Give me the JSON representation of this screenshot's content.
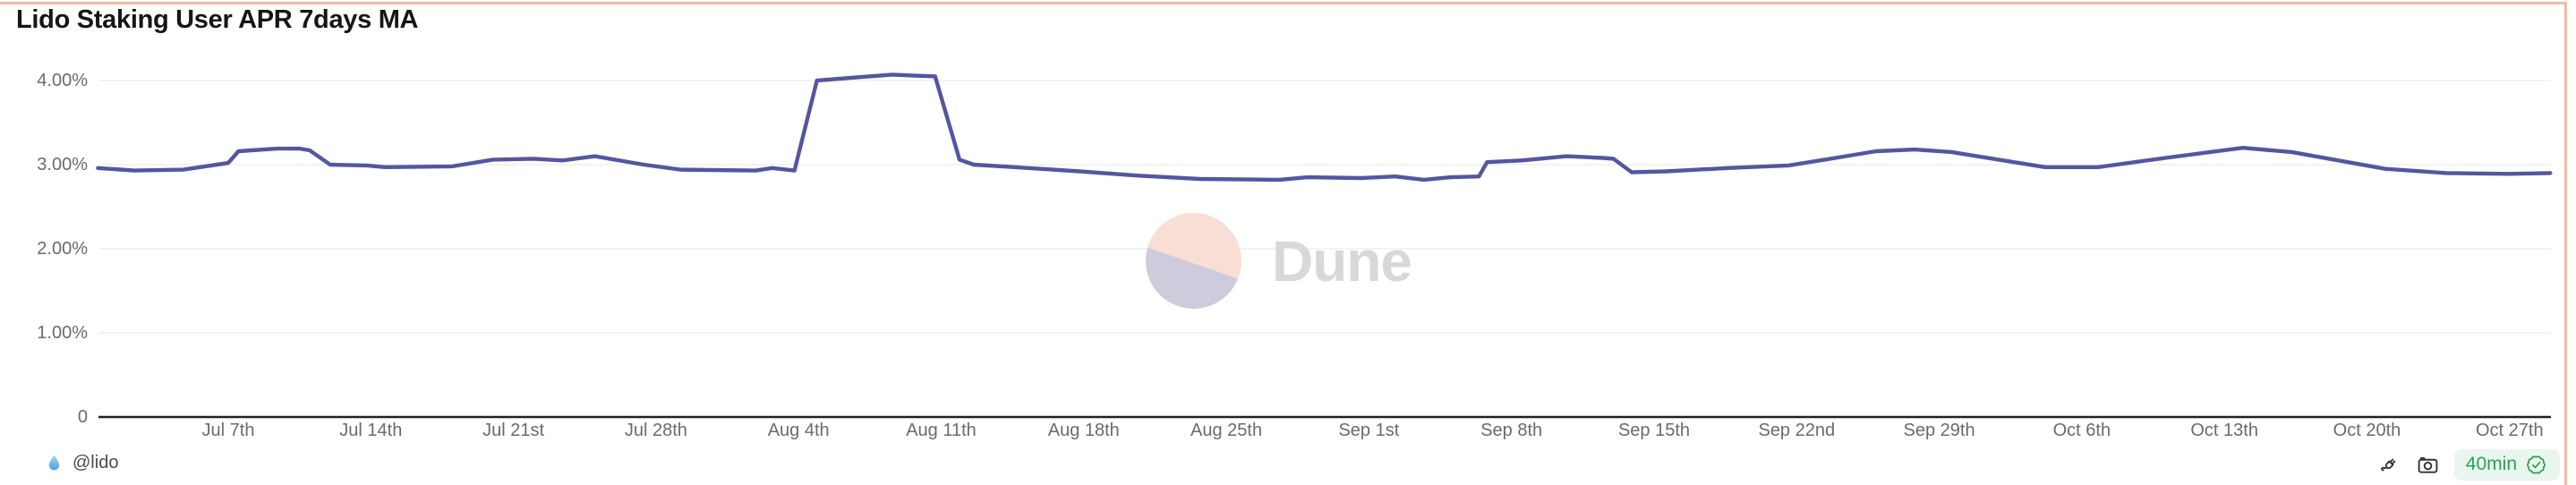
{
  "widget": {
    "title": "Lido Staking User APR 7days MA",
    "border_color": "#f2bba5",
    "background_color": "#ffffff"
  },
  "watermark": {
    "brand": "Dune",
    "text_color": "#d8d8d8",
    "logo_top_color": "#f8ded4",
    "logo_bottom_color": "#cdccdd"
  },
  "footer": {
    "author_handle": "@lido",
    "author_icon": "lido-droplet-icon",
    "action_icons": [
      "plug-icon",
      "camera-icon"
    ],
    "refresh_badge": {
      "label": "40min",
      "icon": "seal-check-icon",
      "text_color": "#2ca05a",
      "bg_color": "#e9f6ee"
    }
  },
  "chart_data": {
    "type": "line",
    "title": "Lido Staking User APR 7days MA",
    "series_name": "Lido Staking User APR 7days MA",
    "line_color": "#5456a0",
    "grid_color": "#efefef",
    "axis_color": "#202020",
    "tick_text_color": "#6b6b6b",
    "grid": true,
    "legend": false,
    "ylabel": "",
    "xlabel": "",
    "ylim": [
      0,
      4.35
    ],
    "y_ticks": [
      {
        "label": "0",
        "value": 0
      },
      {
        "label": "1.00%",
        "value": 1
      },
      {
        "label": "2.00%",
        "value": 2
      },
      {
        "label": "3.00%",
        "value": 3
      },
      {
        "label": "4.00%",
        "value": 4
      }
    ],
    "x_unit": "days since Jul 7",
    "x_ticks": [
      {
        "label": "Jul 7th",
        "day": 0
      },
      {
        "label": "Jul 14th",
        "day": 7
      },
      {
        "label": "Jul 21st",
        "day": 14
      },
      {
        "label": "Jul 28th",
        "day": 21
      },
      {
        "label": "Aug 4th",
        "day": 28
      },
      {
        "label": "Aug 11th",
        "day": 35
      },
      {
        "label": "Aug 18th",
        "day": 42
      },
      {
        "label": "Aug 25th",
        "day": 49
      },
      {
        "label": "Sep 1st",
        "day": 56
      },
      {
        "label": "Sep 8th",
        "day": 63
      },
      {
        "label": "Sep 15th",
        "day": 70
      },
      {
        "label": "Sep 22nd",
        "day": 77
      },
      {
        "label": "Sep 29th",
        "day": 84
      },
      {
        "label": "Oct 6th",
        "day": 91
      },
      {
        "label": "Oct 13th",
        "day": 98
      },
      {
        "label": "Oct 20th",
        "day": 105
      },
      {
        "label": "Oct 27th",
        "day": 112
      }
    ],
    "points": [
      [
        -6.4,
        2.96
      ],
      [
        -4.6,
        2.93
      ],
      [
        -2.2,
        2.94
      ],
      [
        0,
        3.02
      ],
      [
        0.5,
        3.16
      ],
      [
        2.4,
        3.19
      ],
      [
        3.5,
        3.19
      ],
      [
        4,
        3.17
      ],
      [
        5,
        3.0
      ],
      [
        6.8,
        2.99
      ],
      [
        7.7,
        2.97
      ],
      [
        11,
        2.98
      ],
      [
        13,
        3.06
      ],
      [
        15,
        3.07
      ],
      [
        16.4,
        3.05
      ],
      [
        18,
        3.1
      ],
      [
        20.4,
        3.0
      ],
      [
        22.2,
        2.94
      ],
      [
        25.9,
        2.93
      ],
      [
        26.7,
        2.96
      ],
      [
        27.8,
        2.93
      ],
      [
        28.9,
        4.0
      ],
      [
        31,
        4.04
      ],
      [
        32.6,
        4.07
      ],
      [
        33.6,
        4.06
      ],
      [
        34.7,
        4.05
      ],
      [
        35.9,
        3.06
      ],
      [
        36.6,
        3.0
      ],
      [
        39.3,
        2.96
      ],
      [
        41.8,
        2.92
      ],
      [
        44.6,
        2.87
      ],
      [
        47.7,
        2.83
      ],
      [
        51.6,
        2.82
      ],
      [
        53,
        2.85
      ],
      [
        55.6,
        2.84
      ],
      [
        57.3,
        2.86
      ],
      [
        58.7,
        2.82
      ],
      [
        60,
        2.85
      ],
      [
        61.4,
        2.86
      ],
      [
        61.8,
        3.03
      ],
      [
        63.5,
        3.05
      ],
      [
        65.7,
        3.1
      ],
      [
        67.5,
        3.08
      ],
      [
        68,
        3.07
      ],
      [
        68.9,
        2.91
      ],
      [
        70.6,
        2.92
      ],
      [
        73.6,
        2.96
      ],
      [
        76.6,
        2.99
      ],
      [
        78.9,
        3.08
      ],
      [
        80.9,
        3.16
      ],
      [
        82.8,
        3.18
      ],
      [
        84.6,
        3.15
      ],
      [
        89.2,
        2.97
      ],
      [
        91.8,
        2.97
      ],
      [
        95.1,
        3.08
      ],
      [
        98.9,
        3.2
      ],
      [
        101.3,
        3.15
      ],
      [
        105.9,
        2.95
      ],
      [
        108.9,
        2.9
      ],
      [
        111.9,
        2.89
      ],
      [
        114,
        2.9
      ]
    ]
  }
}
